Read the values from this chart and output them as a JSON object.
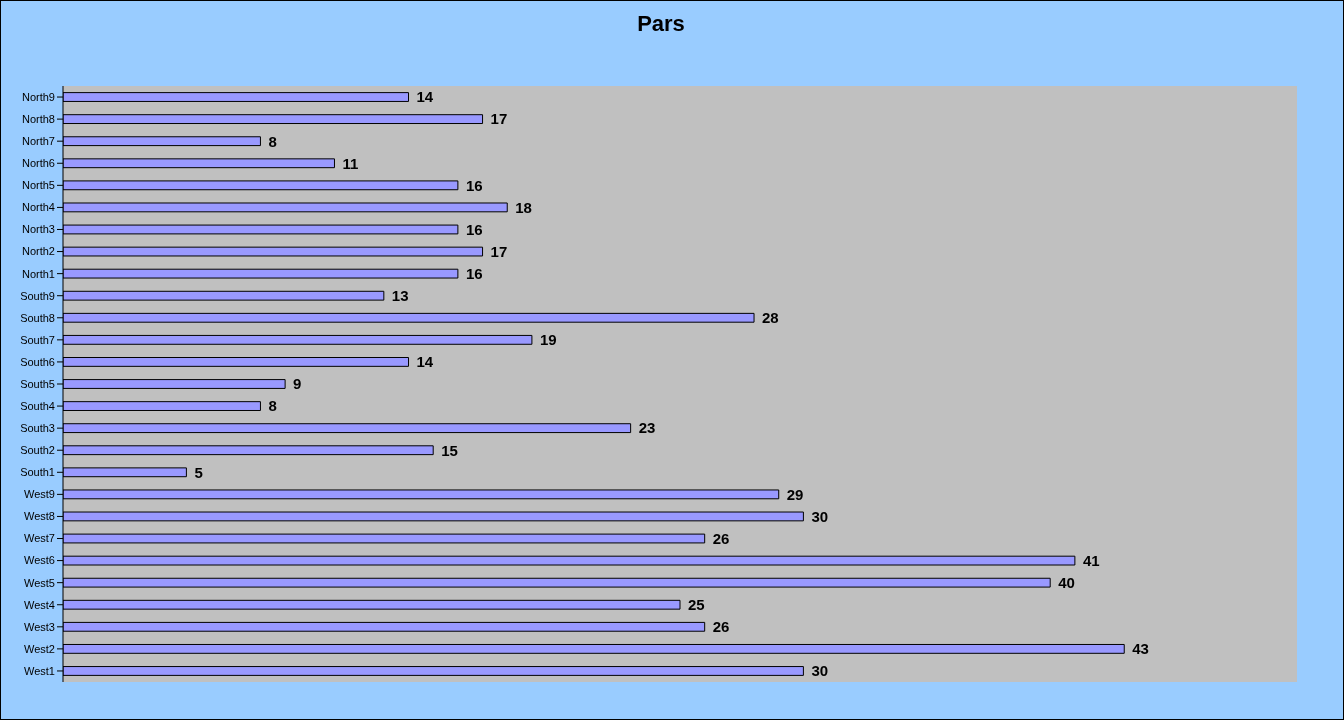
{
  "chart_data": {
    "type": "bar",
    "title": "Pars",
    "orientation": "horizontal",
    "categories": [
      "North9",
      "North8",
      "North7",
      "North6",
      "North5",
      "North4",
      "North3",
      "North2",
      "North1",
      "South9",
      "South8",
      "South7",
      "South6",
      "South5",
      "South4",
      "South3",
      "South2",
      "South1",
      "West9",
      "West8",
      "West7",
      "West6",
      "West5",
      "West4",
      "West3",
      "West2",
      "West1"
    ],
    "values": [
      14,
      17,
      8,
      11,
      16,
      18,
      16,
      17,
      16,
      13,
      28,
      19,
      14,
      9,
      8,
      23,
      15,
      5,
      29,
      30,
      26,
      41,
      40,
      25,
      26,
      43,
      30
    ],
    "color": "#9999ff",
    "xlim": [
      0,
      50
    ],
    "data_labels": true,
    "tick_labels": "y",
    "grid": false
  }
}
